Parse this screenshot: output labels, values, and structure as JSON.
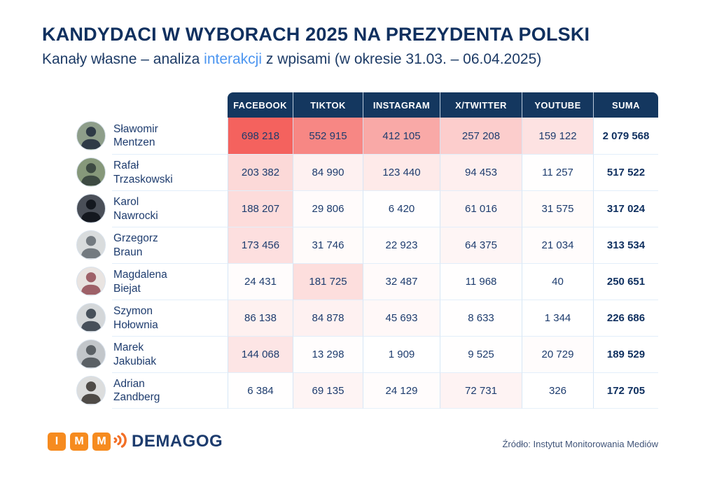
{
  "title": "KANDYDACI W WYBORACH 2025 NA PREZYDENTA POLSKI",
  "subtitle": {
    "prefix": "Kanały własne – analiza ",
    "highlight": "interakcji",
    "suffix": " z wpisami (w okresie 31.03. – 06.04.2025)"
  },
  "colors": {
    "navy_dark": "#10305f",
    "navy_text": "#1d3c6e",
    "header_bg": "#14375f",
    "accent_blue": "#4d96f0",
    "heat_max": "#f4625e",
    "imm_orange": "#f68b1f",
    "wave_orange": "#f26f26",
    "grid_line": "#dce9f5"
  },
  "chart_data": {
    "type": "heatmap",
    "title": "KANDYDACI W WYBORACH 2025 NA PREZYDENTA POLSKI",
    "subtitle": "Kanały własne – analiza interakcji z wpisami (w okresie 31.03. – 06.04.2025)",
    "columns": [
      "FACEBOOK",
      "TIKTOK",
      "INSTAGRAM",
      "X/TWITTER",
      "YOUTUBE",
      "SUMA"
    ],
    "max_value": 698218,
    "rows": [
      {
        "first_name": "Sławomir",
        "last_name": "Mentzen",
        "values": [
          698218,
          552915,
          412105,
          257208,
          159122
        ],
        "sum": 2079568,
        "avatar_bg": "#8e9e8a",
        "avatar_fg": "#2e3a46"
      },
      {
        "first_name": "Rafał",
        "last_name": "Trzaskowski",
        "values": [
          203382,
          84990,
          123440,
          94453,
          11257
        ],
        "sum": 517522,
        "avatar_bg": "#86987a",
        "avatar_fg": "#3d4a42"
      },
      {
        "first_name": "Karol",
        "last_name": "Nawrocki",
        "values": [
          188207,
          29806,
          6420,
          61016,
          31575
        ],
        "sum": 317024,
        "avatar_bg": "#4a4f58",
        "avatar_fg": "#14181f"
      },
      {
        "first_name": "Grzegorz",
        "last_name": "Braun",
        "values": [
          173456,
          31746,
          22923,
          64375,
          21034
        ],
        "sum": 313534,
        "avatar_bg": "#d9dcdd",
        "avatar_fg": "#737a80"
      },
      {
        "first_name": "Magdalena",
        "last_name": "Biejat",
        "values": [
          24431,
          181725,
          32487,
          11968,
          40
        ],
        "sum": 250651,
        "avatar_bg": "#e9e4e1",
        "avatar_fg": "#9e6168"
      },
      {
        "first_name": "Szymon",
        "last_name": "Hołownia",
        "values": [
          86138,
          84878,
          45693,
          8633,
          1344
        ],
        "sum": 226686,
        "avatar_bg": "#d4d7d9",
        "avatar_fg": "#47505a"
      },
      {
        "first_name": "Marek",
        "last_name": "Jakubiak",
        "values": [
          144068,
          13298,
          1909,
          9525,
          20729
        ],
        "sum": 189529,
        "avatar_bg": "#c2c6ca",
        "avatar_fg": "#5a6065"
      },
      {
        "first_name": "Adrian",
        "last_name": "Zandberg",
        "values": [
          6384,
          69135,
          24129,
          72731,
          326
        ],
        "sum": 172705,
        "avatar_bg": "#dcdddd",
        "avatar_fg": "#4f4b47"
      }
    ]
  },
  "footer": {
    "imm_letters": [
      "I",
      "M",
      "M"
    ],
    "demagog_label": "DEMAGOG",
    "source": "Źródło: Instytut Monitorowania Mediów"
  }
}
